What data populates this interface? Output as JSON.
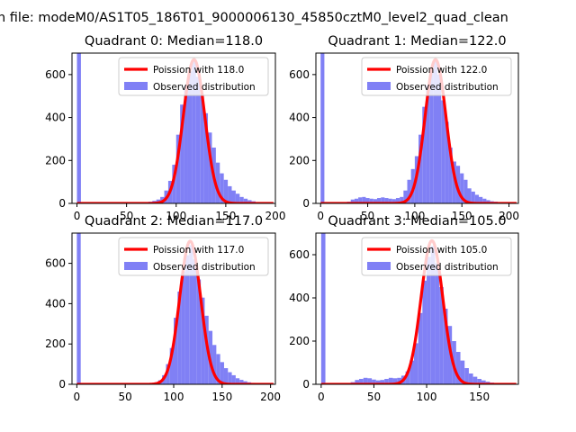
{
  "figure": {
    "suptitle": "n file: modeM0/AS1T05_186T01_9000006130_45850cztM0_level2_quad_clean"
  },
  "chart_data": [
    {
      "type": "bar",
      "title": "Quadrant 0: Median=118.0",
      "xlim": [
        -5,
        200
      ],
      "ylim": [
        0,
        700
      ],
      "xticks": [
        0,
        50,
        100,
        150,
        200
      ],
      "xtick_labels": [
        "0",
        "50",
        "100",
        "150",
        "200"
      ],
      "yticks": [
        0,
        200,
        400,
        600
      ],
      "ytick_labels": [
        "0",
        "200",
        "400",
        "600"
      ],
      "legend_placement": "upper-right",
      "legend": [
        "Poission with 118.0",
        "Observed distribution"
      ],
      "poisson_mean": 118.0,
      "poisson_peak": 670,
      "bar_color": "#8080f5",
      "line_color": "#ff0000",
      "series": [
        {
          "name": "Observed distribution",
          "bin_width": 4,
          "bins": [
            [
              0,
              2000
            ],
            [
              56,
              3
            ],
            [
              60,
              4
            ],
            [
              64,
              4
            ],
            [
              68,
              5
            ],
            [
              72,
              8
            ],
            [
              76,
              12
            ],
            [
              80,
              18
            ],
            [
              84,
              30
            ],
            [
              88,
              60
            ],
            [
              92,
              105
            ],
            [
              96,
              180
            ],
            [
              100,
              320
            ],
            [
              104,
              460
            ],
            [
              108,
              550
            ],
            [
              112,
              615
            ],
            [
              116,
              665
            ],
            [
              120,
              590
            ],
            [
              124,
              510
            ],
            [
              128,
              420
            ],
            [
              132,
              330
            ],
            [
              136,
              260
            ],
            [
              140,
              190
            ],
            [
              144,
              140
            ],
            [
              148,
              110
            ],
            [
              152,
              80
            ],
            [
              156,
              60
            ],
            [
              160,
              45
            ],
            [
              164,
              30
            ],
            [
              168,
              22
            ],
            [
              172,
              15
            ],
            [
              176,
              10
            ],
            [
              180,
              6
            ],
            [
              184,
              4
            ],
            [
              188,
              3
            ]
          ]
        }
      ]
    },
    {
      "type": "bar",
      "title": "Quadrant 1: Median=122.0",
      "xlim": [
        -5,
        210
      ],
      "ylim": [
        0,
        700
      ],
      "xticks": [
        0,
        50,
        100,
        150,
        200
      ],
      "xtick_labels": [
        "0",
        "50",
        "100",
        "150",
        "200"
      ],
      "yticks": [
        0,
        200,
        400,
        600
      ],
      "ytick_labels": [
        "0",
        "200",
        "400",
        "600"
      ],
      "legend_placement": "upper-right",
      "legend": [
        "Poission with 122.0",
        "Observed distribution"
      ],
      "poisson_mean": 122.0,
      "poisson_peak": 670,
      "bar_color": "#8080f5",
      "line_color": "#ff0000",
      "series": [
        {
          "name": "Observed distribution",
          "bin_width": 4,
          "bins": [
            [
              0,
              2000
            ],
            [
              28,
              8
            ],
            [
              32,
              18
            ],
            [
              36,
              22
            ],
            [
              40,
              28
            ],
            [
              44,
              30
            ],
            [
              48,
              25
            ],
            [
              52,
              22
            ],
            [
              56,
              20
            ],
            [
              60,
              25
            ],
            [
              64,
              28
            ],
            [
              68,
              25
            ],
            [
              72,
              22
            ],
            [
              76,
              20
            ],
            [
              80,
              25
            ],
            [
              84,
              30
            ],
            [
              88,
              60
            ],
            [
              92,
              110
            ],
            [
              96,
              160
            ],
            [
              100,
              220
            ],
            [
              104,
              320
            ],
            [
              108,
              450
            ],
            [
              112,
              550
            ],
            [
              116,
              620
            ],
            [
              120,
              660
            ],
            [
              124,
              600
            ],
            [
              128,
              480
            ],
            [
              132,
              380
            ],
            [
              136,
              260
            ],
            [
              140,
              195
            ],
            [
              144,
              175
            ],
            [
              148,
              140
            ],
            [
              152,
              110
            ],
            [
              156,
              70
            ],
            [
              160,
              55
            ],
            [
              164,
              40
            ],
            [
              168,
              30
            ],
            [
              172,
              22
            ],
            [
              176,
              15
            ],
            [
              180,
              10
            ],
            [
              184,
              8
            ],
            [
              188,
              5
            ],
            [
              192,
              4
            ],
            [
              196,
              3
            ]
          ]
        }
      ]
    },
    {
      "type": "bar",
      "title": "Quadrant 2: Median=117.0",
      "xlim": [
        -5,
        205
      ],
      "ylim": [
        0,
        750
      ],
      "xticks": [
        0,
        50,
        100,
        150,
        200
      ],
      "xtick_labels": [
        "0",
        "50",
        "100",
        "150",
        "200"
      ],
      "yticks": [
        0,
        200,
        400,
        600
      ],
      "ytick_labels": [
        "0",
        "200",
        "400",
        "600"
      ],
      "legend_placement": "upper-right",
      "legend": [
        "Poission with 117.0",
        "Observed distribution"
      ],
      "poisson_mean": 117.0,
      "poisson_peak": 710,
      "bar_color": "#8080f5",
      "line_color": "#ff0000",
      "series": [
        {
          "name": "Observed distribution",
          "bin_width": 4,
          "bins": [
            [
              0,
              2000
            ],
            [
              72,
              3
            ],
            [
              76,
              5
            ],
            [
              80,
              10
            ],
            [
              84,
              20
            ],
            [
              88,
              45
            ],
            [
              92,
              100
            ],
            [
              96,
              180
            ],
            [
              100,
              330
            ],
            [
              104,
              460
            ],
            [
              108,
              560
            ],
            [
              112,
              640
            ],
            [
              116,
              690
            ],
            [
              120,
              620
            ],
            [
              124,
              520
            ],
            [
              128,
              430
            ],
            [
              132,
              340
            ],
            [
              136,
              265
            ],
            [
              140,
              195
            ],
            [
              144,
              150
            ],
            [
              148,
              110
            ],
            [
              152,
              80
            ],
            [
              156,
              60
            ],
            [
              160,
              45
            ],
            [
              164,
              30
            ],
            [
              168,
              22
            ],
            [
              172,
              15
            ],
            [
              176,
              10
            ],
            [
              180,
              7
            ],
            [
              184,
              5
            ],
            [
              188,
              3
            ]
          ]
        }
      ]
    },
    {
      "type": "bar",
      "title": "Quadrant 3: Median=105.0",
      "xlim": [
        -5,
        187
      ],
      "ylim": [
        0,
        700
      ],
      "xticks": [
        0,
        50,
        100,
        150
      ],
      "xtick_labels": [
        "0",
        "50",
        "100",
        "150"
      ],
      "yticks": [
        0,
        200,
        400,
        600
      ],
      "ytick_labels": [
        "0",
        "200",
        "400",
        "600"
      ],
      "legend_placement": "upper-right",
      "legend": [
        "Poission with 105.0",
        "Observed distribution"
      ],
      "poisson_mean": 105.0,
      "poisson_peak": 665,
      "bar_color": "#8080f5",
      "line_color": "#ff0000",
      "series": [
        {
          "name": "Observed distribution",
          "bin_width": 4,
          "bins": [
            [
              0,
              2000
            ],
            [
              28,
              10
            ],
            [
              32,
              20
            ],
            [
              36,
              25
            ],
            [
              40,
              30
            ],
            [
              44,
              28
            ],
            [
              48,
              22
            ],
            [
              52,
              18
            ],
            [
              56,
              20
            ],
            [
              60,
              25
            ],
            [
              64,
              30
            ],
            [
              68,
              28
            ],
            [
              72,
              30
            ],
            [
              76,
              40
            ],
            [
              80,
              60
            ],
            [
              84,
              110
            ],
            [
              88,
              190
            ],
            [
              92,
              330
            ],
            [
              96,
              480
            ],
            [
              100,
              590
            ],
            [
              104,
              640
            ],
            [
              108,
              560
            ],
            [
              112,
              450
            ],
            [
              116,
              350
            ],
            [
              120,
              270
            ],
            [
              124,
              200
            ],
            [
              128,
              150
            ],
            [
              132,
              110
            ],
            [
              136,
              75
            ],
            [
              140,
              50
            ],
            [
              144,
              35
            ],
            [
              148,
              25
            ],
            [
              152,
              18
            ],
            [
              156,
              12
            ],
            [
              160,
              8
            ],
            [
              164,
              5
            ],
            [
              168,
              4
            ],
            [
              172,
              3
            ],
            [
              176,
              2
            ]
          ]
        }
      ]
    }
  ]
}
